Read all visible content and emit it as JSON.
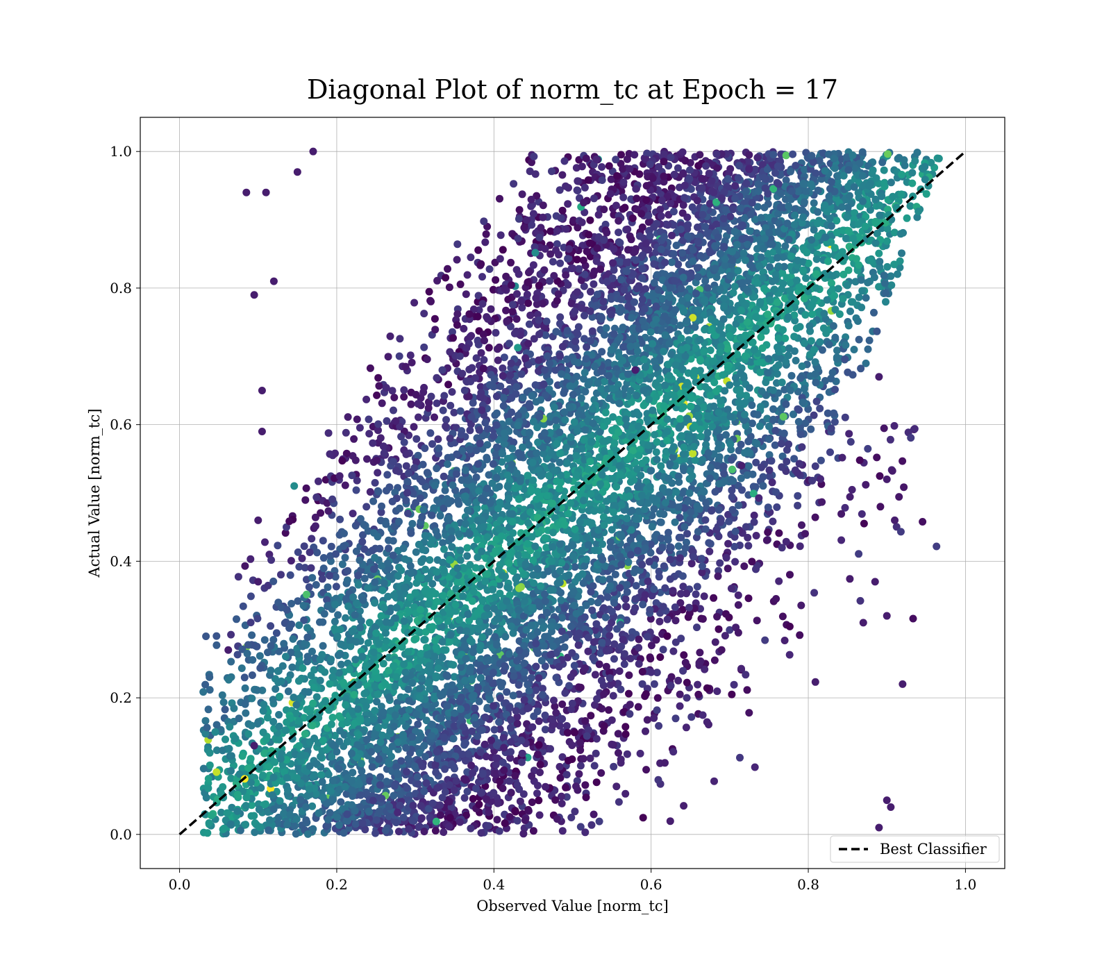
{
  "chart_data": {
    "type": "scatter",
    "title": "Diagonal Plot of norm_tc at Epoch = 17",
    "xlabel": "Observed Value [norm_tc]",
    "ylabel": "Actual Value [norm_tc]",
    "xlim": [
      -0.05,
      1.05
    ],
    "ylim": [
      -0.05,
      1.05
    ],
    "xticks": [
      0.0,
      0.2,
      0.4,
      0.6,
      0.8,
      1.0
    ],
    "yticks": [
      0.0,
      0.2,
      0.4,
      0.6,
      0.8,
      1.0
    ],
    "xtick_labels": [
      "0.0",
      "0.2",
      "0.4",
      "0.6",
      "0.8",
      "1.0"
    ],
    "ytick_labels": [
      "0.0",
      "0.2",
      "0.4",
      "0.6",
      "0.8",
      "1.0"
    ],
    "grid": true,
    "colormap": "viridis",
    "legend": {
      "position": "lower-right",
      "entries": [
        {
          "label": "Best Classifier",
          "style": "dashed",
          "color": "#000000"
        }
      ]
    },
    "reference_line": {
      "name": "Best Classifier",
      "x": [
        0.0,
        1.0
      ],
      "y": [
        0.0,
        1.0
      ]
    },
    "point_cloud": {
      "description_of_distribution": "dense band around y=x; observed range approx 0.03–0.97, actual range 0.0–1.0",
      "x_range": [
        0.03,
        0.97
      ],
      "y_range": [
        0.0,
        1.0
      ],
      "approx_count": 20000
    },
    "sample_points": [
      {
        "x": 0.085,
        "y": 0.94
      },
      {
        "x": 0.11,
        "y": 0.94
      },
      {
        "x": 0.15,
        "y": 0.97
      },
      {
        "x": 0.17,
        "y": 1.0
      },
      {
        "x": 0.095,
        "y": 0.79
      },
      {
        "x": 0.12,
        "y": 0.81
      },
      {
        "x": 0.105,
        "y": 0.65
      },
      {
        "x": 0.105,
        "y": 0.59
      },
      {
        "x": 0.1,
        "y": 0.46
      },
      {
        "x": 0.1,
        "y": 0.37
      },
      {
        "x": 0.062,
        "y": 0.27
      },
      {
        "x": 0.58,
        "y": 0.68
      },
      {
        "x": 0.715,
        "y": 0.54
      },
      {
        "x": 0.89,
        "y": 0.67
      },
      {
        "x": 0.9,
        "y": 0.52
      },
      {
        "x": 0.91,
        "y": 0.46
      },
      {
        "x": 0.9,
        "y": 0.32
      },
      {
        "x": 0.92,
        "y": 0.22
      },
      {
        "x": 0.885,
        "y": 0.37
      },
      {
        "x": 0.9,
        "y": 0.05
      },
      {
        "x": 0.89,
        "y": 0.01
      },
      {
        "x": 0.905,
        "y": 0.04
      },
      {
        "x": 0.87,
        "y": 0.31
      },
      {
        "x": 0.095,
        "y": 0.13
      }
    ]
  }
}
